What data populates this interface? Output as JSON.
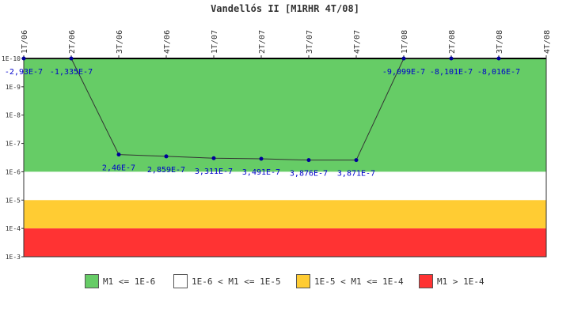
{
  "chart_data": {
    "type": "line",
    "title": "Vandellós II [M1RHR 4T/08]",
    "x": [
      "1T/06",
      "2T/06",
      "3T/06",
      "4T/06",
      "1T/07",
      "2T/07",
      "3T/07",
      "4T/07",
      "1T/08",
      "2T/08",
      "3T/08",
      "4T/08"
    ],
    "y_scale": "log",
    "y_axis_reversed": true,
    "ylim": [
      "1E-10",
      "1E-3"
    ],
    "y_ticks": [
      "1E-10",
      "1E-9",
      "1E-8",
      "1E-7",
      "1E-6",
      "1E-5",
      "1E-4",
      "1E-3"
    ],
    "series": [
      {
        "points": [
          {
            "x": "1T/06",
            "y": 1e-10,
            "label": "-2,93E-7"
          },
          {
            "x": "2T/06",
            "y": 1e-10,
            "label": "-1,335E-7"
          },
          {
            "x": "3T/06",
            "y": 2.46e-07,
            "label": "2,46E-7"
          },
          {
            "x": "4T/06",
            "y": 2.859e-07,
            "label": "2,859E-7"
          },
          {
            "x": "1T/07",
            "y": 3.311e-07,
            "label": "3,311E-7"
          },
          {
            "x": "2T/07",
            "y": 3.491e-07,
            "label": "3,491E-7"
          },
          {
            "x": "3T/07",
            "y": 3.876e-07,
            "label": "3,876E-7"
          },
          {
            "x": "4T/07",
            "y": 3.871e-07,
            "label": "3,871E-7"
          },
          {
            "x": "1T/08",
            "y": 1e-10,
            "label": "-9,099E-7"
          },
          {
            "x": "2T/08",
            "y": 1e-10,
            "label": "-8,101E-7"
          },
          {
            "x": "3T/08",
            "y": 1e-10,
            "label": "-8,016E-7"
          }
        ],
        "color": "#333333",
        "marker_color": "#000099",
        "label_color": "#0000cc"
      }
    ],
    "bands": [
      {
        "from": 1e-10,
        "to": 1e-06,
        "color": "#66cc66",
        "legend": "M1 <= 1E-6"
      },
      {
        "from": 1e-06,
        "to": 1e-05,
        "color": "#ffffff",
        "legend": "1E-6 < M1 <= 1E-5"
      },
      {
        "from": 1e-05,
        "to": 0.0001,
        "color": "#ffcc33",
        "legend": "1E-5 < M1 <= 1E-4"
      },
      {
        "from": 0.0001,
        "to": 0.001,
        "color": "#ff3333",
        "legend": "M1 > 1E-4"
      }
    ],
    "legend_position": "bottom",
    "grid": false
  }
}
